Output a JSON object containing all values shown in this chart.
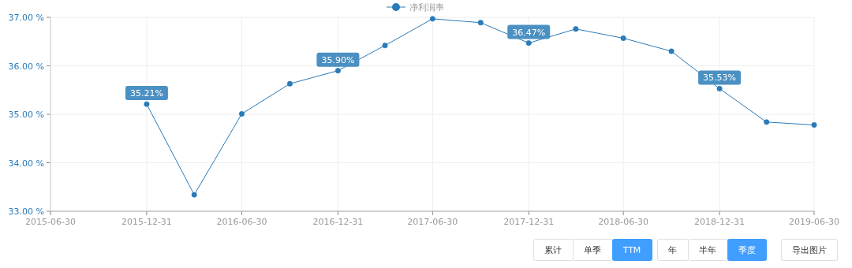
{
  "chart_data": {
    "type": "line",
    "x": [
      "2015-12-31",
      "2016-03-31",
      "2016-06-30",
      "2016-09-30",
      "2016-12-31",
      "2017-03-31",
      "2017-06-30",
      "2017-09-30",
      "2017-12-31",
      "2018-03-31",
      "2018-06-30",
      "2018-09-30",
      "2018-12-31",
      "2019-03-31",
      "2019-06-30"
    ],
    "series": [
      {
        "name": "净利润率",
        "color": "#2a7ab8",
        "values": [
          35.21,
          33.34,
          35.01,
          35.63,
          35.9,
          36.42,
          36.97,
          36.89,
          36.47,
          36.76,
          36.57,
          36.3,
          35.53,
          34.84,
          34.78
        ],
        "value_labels": [
          "35.21%",
          null,
          null,
          null,
          "35.90%",
          null,
          null,
          null,
          "36.47%",
          null,
          null,
          null,
          "35.53%",
          null,
          null
        ]
      }
    ],
    "xlim": [
      "2015-06-30",
      "2019-06-30"
    ],
    "xticks": [
      {
        "value": "2015-06-30",
        "label": "2015-06-30"
      },
      {
        "value": "2015-12-31",
        "label": "2015-12-31"
      },
      {
        "value": "2016-06-30",
        "label": "2016-06-30"
      },
      {
        "value": "2016-12-31",
        "label": "2016-12-31"
      },
      {
        "value": "2017-06-30",
        "label": "2017-06-30"
      },
      {
        "value": "2017-12-31",
        "label": "2017-12-31"
      },
      {
        "value": "2018-06-30",
        "label": "2018-06-30"
      },
      {
        "value": "2018-12-31",
        "label": "2018-12-31"
      },
      {
        "value": "2019-06-30",
        "label": "2019-06-30"
      }
    ],
    "ylim": [
      33,
      37
    ],
    "yticks": [
      {
        "value": 33,
        "label": "33.00 %"
      },
      {
        "value": 34,
        "label": "34.00 %"
      },
      {
        "value": 35,
        "label": "35.00 %"
      },
      {
        "value": 36,
        "label": "36.00 %"
      },
      {
        "value": 37,
        "label": "37.00 %"
      }
    ],
    "grid": true,
    "legend": "top",
    "marker": "circle",
    "line_style": "solid",
    "annotations": [
      "累计",
      "单季",
      "TTM",
      "年",
      "半年",
      "季度",
      "导出图片"
    ]
  }
}
